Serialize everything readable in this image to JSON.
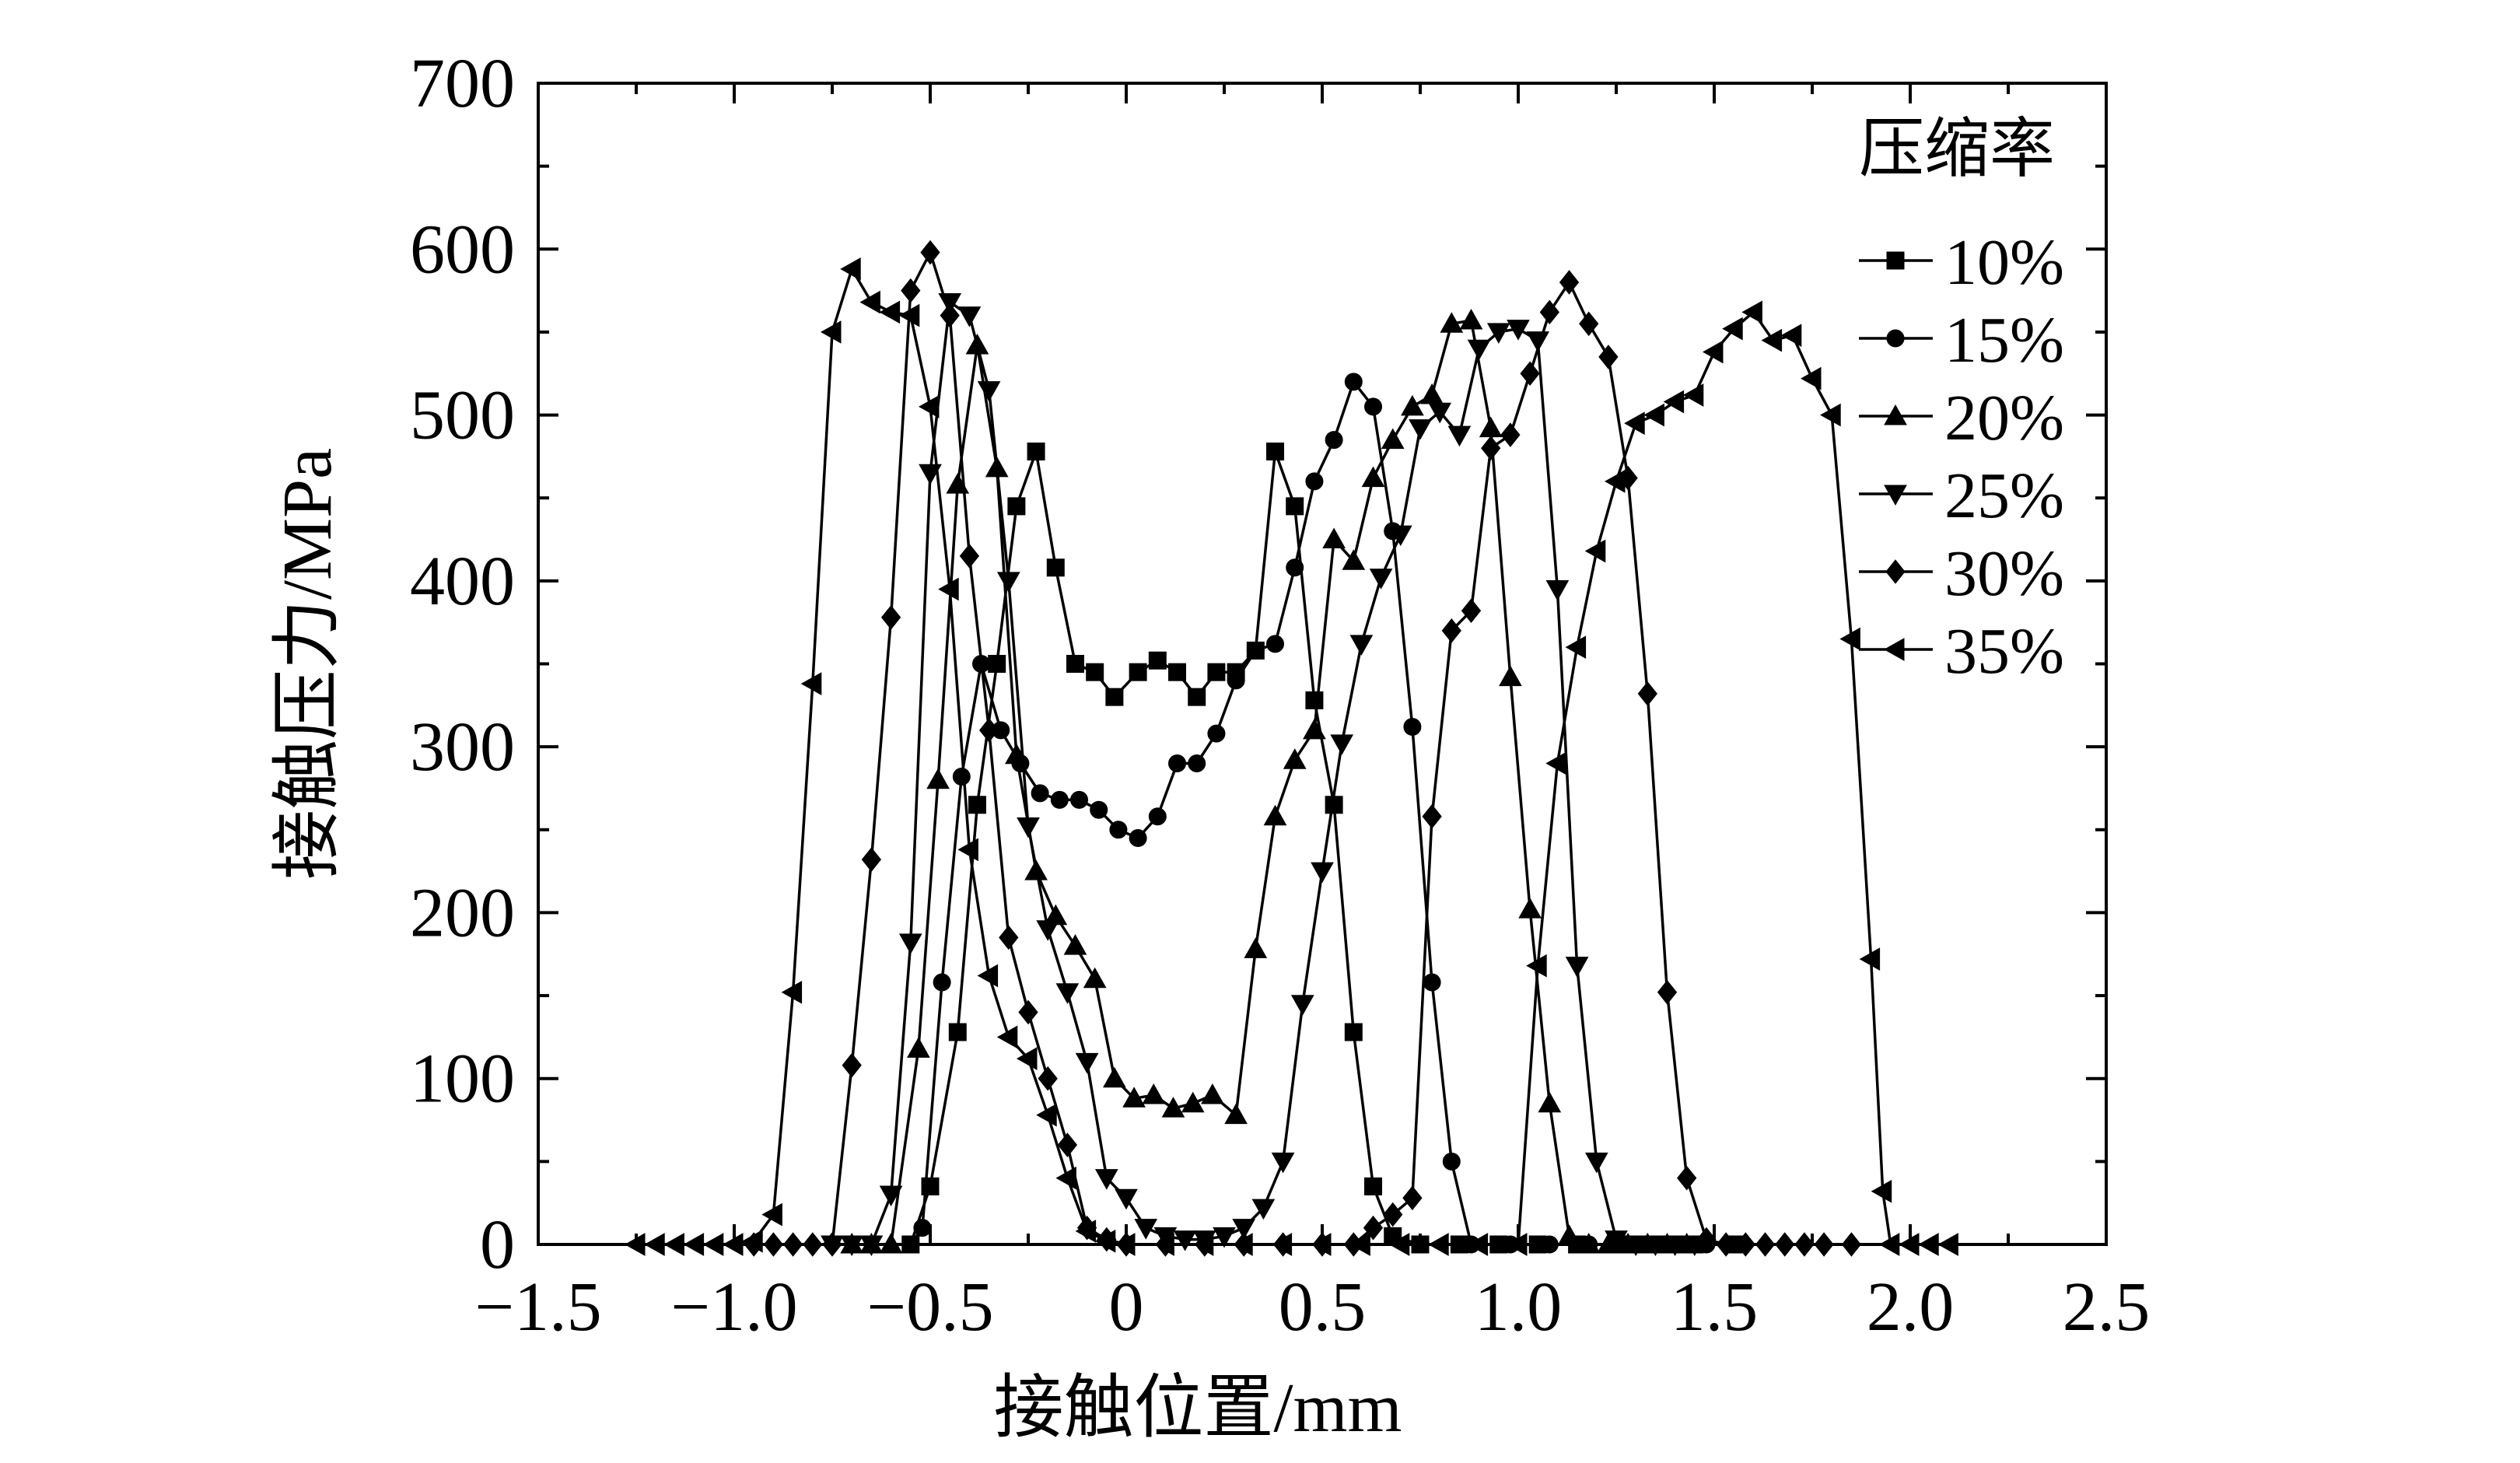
{
  "chart_data": {
    "type": "line",
    "title": "",
    "xlabel": "接触位置/mm",
    "ylabel": "接触压力/MPa",
    "xlim": [
      -1.5,
      2.5
    ],
    "ylim": [
      0,
      700
    ],
    "x_ticks": [
      -1.5,
      -1.0,
      -0.5,
      0,
      0.5,
      1.0,
      1.5,
      2.0,
      2.5
    ],
    "x_tick_labels": [
      "−1.5",
      "−1.0",
      "−0.5",
      "0",
      "0.5",
      "1.0",
      "1.5",
      "2.0",
      "2.5"
    ],
    "y_ticks": [
      0,
      100,
      200,
      300,
      400,
      500,
      600,
      700
    ],
    "y_tick_labels": [
      "0",
      "100",
      "200",
      "300",
      "400",
      "500",
      "600",
      "700"
    ],
    "grid": false,
    "legend": {
      "title": "压缩率",
      "placement": "top-right"
    },
    "series": [
      {
        "name": "10%",
        "marker": "square",
        "points": [
          [
            -0.55,
            0
          ],
          [
            -0.5,
            35
          ],
          [
            -0.43,
            128
          ],
          [
            -0.38,
            265
          ],
          [
            -0.33,
            350
          ],
          [
            -0.28,
            445
          ],
          [
            -0.23,
            478
          ],
          [
            -0.18,
            408
          ],
          [
            -0.13,
            350
          ],
          [
            -0.08,
            345
          ],
          [
            -0.03,
            330
          ],
          [
            0.03,
            345
          ],
          [
            0.08,
            352
          ],
          [
            0.13,
            345
          ],
          [
            0.18,
            330
          ],
          [
            0.23,
            345
          ],
          [
            0.28,
            345
          ],
          [
            0.33,
            358
          ],
          [
            0.38,
            478
          ],
          [
            0.43,
            445
          ],
          [
            0.48,
            328
          ],
          [
            0.53,
            265
          ],
          [
            0.58,
            128
          ],
          [
            0.63,
            35
          ],
          [
            0.68,
            5
          ],
          [
            0.75,
            0
          ],
          [
            0.85,
            0
          ],
          [
            0.95,
            0
          ],
          [
            1.05,
            0
          ],
          [
            1.15,
            0
          ],
          [
            1.25,
            0
          ],
          [
            1.35,
            0
          ],
          [
            1.45,
            0
          ],
          [
            1.55,
            0
          ]
        ]
      },
      {
        "name": "15%",
        "marker": "circle",
        "points": [
          [
            -0.55,
            0
          ],
          [
            -0.52,
            10
          ],
          [
            -0.47,
            158
          ],
          [
            -0.42,
            282
          ],
          [
            -0.37,
            350
          ],
          [
            -0.32,
            310
          ],
          [
            -0.27,
            290
          ],
          [
            -0.22,
            272
          ],
          [
            -0.17,
            268
          ],
          [
            -0.12,
            268
          ],
          [
            -0.07,
            262
          ],
          [
            -0.02,
            250
          ],
          [
            0.03,
            245
          ],
          [
            0.08,
            258
          ],
          [
            0.13,
            290
          ],
          [
            0.18,
            290
          ],
          [
            0.23,
            308
          ],
          [
            0.28,
            340
          ],
          [
            0.33,
            358
          ],
          [
            0.38,
            362
          ],
          [
            0.43,
            408
          ],
          [
            0.48,
            460
          ],
          [
            0.53,
            485
          ],
          [
            0.58,
            520
          ],
          [
            0.63,
            505
          ],
          [
            0.68,
            430
          ],
          [
            0.73,
            312
          ],
          [
            0.78,
            158
          ],
          [
            0.83,
            50
          ],
          [
            0.88,
            0
          ],
          [
            0.98,
            0
          ],
          [
            1.08,
            0
          ],
          [
            1.18,
            0
          ],
          [
            1.28,
            0
          ],
          [
            1.38,
            0
          ],
          [
            1.48,
            0
          ]
        ]
      },
      {
        "name": "20%",
        "marker": "triangle-up",
        "points": [
          [
            -0.7,
            0
          ],
          [
            -0.65,
            0
          ],
          [
            -0.6,
            0
          ],
          [
            -0.53,
            118
          ],
          [
            -0.48,
            280
          ],
          [
            -0.43,
            458
          ],
          [
            -0.38,
            542
          ],
          [
            -0.33,
            468
          ],
          [
            -0.28,
            295
          ],
          [
            -0.23,
            225
          ],
          [
            -0.18,
            198
          ],
          [
            -0.13,
            180
          ],
          [
            -0.08,
            160
          ],
          [
            -0.03,
            100
          ],
          [
            0.02,
            88
          ],
          [
            0.07,
            90
          ],
          [
            0.12,
            82
          ],
          [
            0.17,
            85
          ],
          [
            0.22,
            90
          ],
          [
            0.28,
            78
          ],
          [
            0.33,
            178
          ],
          [
            0.38,
            258
          ],
          [
            0.43,
            292
          ],
          [
            0.48,
            310
          ],
          [
            0.53,
            425
          ],
          [
            0.58,
            412
          ],
          [
            0.63,
            462
          ],
          [
            0.68,
            485
          ],
          [
            0.73,
            505
          ],
          [
            0.78,
            512
          ],
          [
            0.83,
            555
          ],
          [
            0.88,
            557
          ],
          [
            0.93,
            492
          ],
          [
            0.98,
            342
          ],
          [
            1.03,
            202
          ],
          [
            1.08,
            85
          ],
          [
            1.13,
            5
          ],
          [
            1.18,
            0
          ],
          [
            1.23,
            0
          ],
          [
            1.28,
            0
          ],
          [
            1.33,
            0
          ],
          [
            1.38,
            0
          ],
          [
            1.43,
            0
          ]
        ]
      },
      {
        "name": "25%",
        "marker": "triangle-down",
        "points": [
          [
            -0.75,
            0
          ],
          [
            -0.7,
            0
          ],
          [
            -0.65,
            0
          ],
          [
            -0.6,
            30
          ],
          [
            -0.55,
            182
          ],
          [
            -0.5,
            465
          ],
          [
            -0.45,
            568
          ],
          [
            -0.4,
            560
          ],
          [
            -0.35,
            515
          ],
          [
            -0.3,
            400
          ],
          [
            -0.25,
            252
          ],
          [
            -0.2,
            190
          ],
          [
            -0.15,
            152
          ],
          [
            -0.1,
            110
          ],
          [
            -0.05,
            40
          ],
          [
            0.0,
            28
          ],
          [
            0.05,
            10
          ],
          [
            0.1,
            5
          ],
          [
            0.15,
            3
          ],
          [
            0.2,
            3
          ],
          [
            0.25,
            5
          ],
          [
            0.3,
            10
          ],
          [
            0.35,
            22
          ],
          [
            0.4,
            50
          ],
          [
            0.45,
            145
          ],
          [
            0.5,
            225
          ],
          [
            0.55,
            302
          ],
          [
            0.6,
            362
          ],
          [
            0.65,
            402
          ],
          [
            0.7,
            428
          ],
          [
            0.75,
            492
          ],
          [
            0.8,
            502
          ],
          [
            0.85,
            488
          ],
          [
            0.9,
            540
          ],
          [
            0.95,
            550
          ],
          [
            1.0,
            552
          ],
          [
            1.05,
            545
          ],
          [
            1.1,
            395
          ],
          [
            1.15,
            168
          ],
          [
            1.2,
            50
          ],
          [
            1.25,
            3
          ],
          [
            1.3,
            0
          ],
          [
            1.35,
            0
          ],
          [
            1.4,
            0
          ],
          [
            1.45,
            0
          ]
        ]
      },
      {
        "name": "30%",
        "marker": "diamond",
        "points": [
          [
            -0.95,
            0
          ],
          [
            -0.9,
            0
          ],
          [
            -0.85,
            0
          ],
          [
            -0.8,
            0
          ],
          [
            -0.75,
            0
          ],
          [
            -0.7,
            108
          ],
          [
            -0.65,
            232
          ],
          [
            -0.6,
            378
          ],
          [
            -0.55,
            575
          ],
          [
            -0.5,
            598
          ],
          [
            -0.45,
            560
          ],
          [
            -0.4,
            415
          ],
          [
            -0.35,
            310
          ],
          [
            -0.3,
            185
          ],
          [
            -0.25,
            140
          ],
          [
            -0.2,
            100
          ],
          [
            -0.15,
            60
          ],
          [
            -0.1,
            10
          ],
          [
            -0.05,
            3
          ],
          [
            0.0,
            0
          ],
          [
            0.1,
            0
          ],
          [
            0.2,
            0
          ],
          [
            0.3,
            0
          ],
          [
            0.4,
            0
          ],
          [
            0.5,
            0
          ],
          [
            0.58,
            0
          ],
          [
            0.63,
            10
          ],
          [
            0.68,
            18
          ],
          [
            0.73,
            28
          ],
          [
            0.78,
            258
          ],
          [
            0.83,
            370
          ],
          [
            0.88,
            382
          ],
          [
            0.93,
            480
          ],
          [
            0.98,
            488
          ],
          [
            1.03,
            525
          ],
          [
            1.08,
            562
          ],
          [
            1.13,
            580
          ],
          [
            1.18,
            555
          ],
          [
            1.23,
            535
          ],
          [
            1.28,
            462
          ],
          [
            1.33,
            332
          ],
          [
            1.38,
            152
          ],
          [
            1.43,
            40
          ],
          [
            1.48,
            3
          ],
          [
            1.53,
            0
          ],
          [
            1.58,
            0
          ],
          [
            1.63,
            0
          ],
          [
            1.68,
            0
          ],
          [
            1.73,
            0
          ],
          [
            1.78,
            0
          ],
          [
            1.85,
            0
          ]
        ]
      },
      {
        "name": "35%",
        "marker": "triangle-left",
        "points": [
          [
            -1.25,
            0
          ],
          [
            -1.2,
            0
          ],
          [
            -1.15,
            0
          ],
          [
            -1.1,
            0
          ],
          [
            -1.05,
            0
          ],
          [
            -1.0,
            0
          ],
          [
            -0.95,
            2
          ],
          [
            -0.9,
            18
          ],
          [
            -0.85,
            152
          ],
          [
            -0.8,
            338
          ],
          [
            -0.75,
            550
          ],
          [
            -0.7,
            588
          ],
          [
            -0.65,
            568
          ],
          [
            -0.6,
            562
          ],
          [
            -0.55,
            560
          ],
          [
            -0.5,
            505
          ],
          [
            -0.45,
            395
          ],
          [
            -0.4,
            238
          ],
          [
            -0.35,
            162
          ],
          [
            -0.3,
            125
          ],
          [
            -0.25,
            112
          ],
          [
            -0.2,
            78
          ],
          [
            -0.15,
            40
          ],
          [
            -0.1,
            8
          ],
          [
            -0.05,
            2
          ],
          [
            0.0,
            0
          ],
          [
            0.1,
            0
          ],
          [
            0.2,
            0
          ],
          [
            0.3,
            0
          ],
          [
            0.4,
            0
          ],
          [
            0.5,
            0
          ],
          [
            0.6,
            0
          ],
          [
            0.7,
            0
          ],
          [
            0.8,
            0
          ],
          [
            0.9,
            0
          ],
          [
            1.0,
            0
          ],
          [
            1.05,
            168
          ],
          [
            1.1,
            290
          ],
          [
            1.15,
            360
          ],
          [
            1.2,
            418
          ],
          [
            1.25,
            460
          ],
          [
            1.3,
            495
          ],
          [
            1.35,
            500
          ],
          [
            1.4,
            508
          ],
          [
            1.45,
            512
          ],
          [
            1.5,
            538
          ],
          [
            1.55,
            552
          ],
          [
            1.6,
            562
          ],
          [
            1.65,
            545
          ],
          [
            1.7,
            548
          ],
          [
            1.75,
            522
          ],
          [
            1.8,
            500
          ],
          [
            1.85,
            365
          ],
          [
            1.9,
            172
          ],
          [
            1.93,
            32
          ],
          [
            1.95,
            0
          ],
          [
            2.0,
            0
          ],
          [
            2.05,
            0
          ],
          [
            2.1,
            0
          ]
        ]
      }
    ]
  }
}
